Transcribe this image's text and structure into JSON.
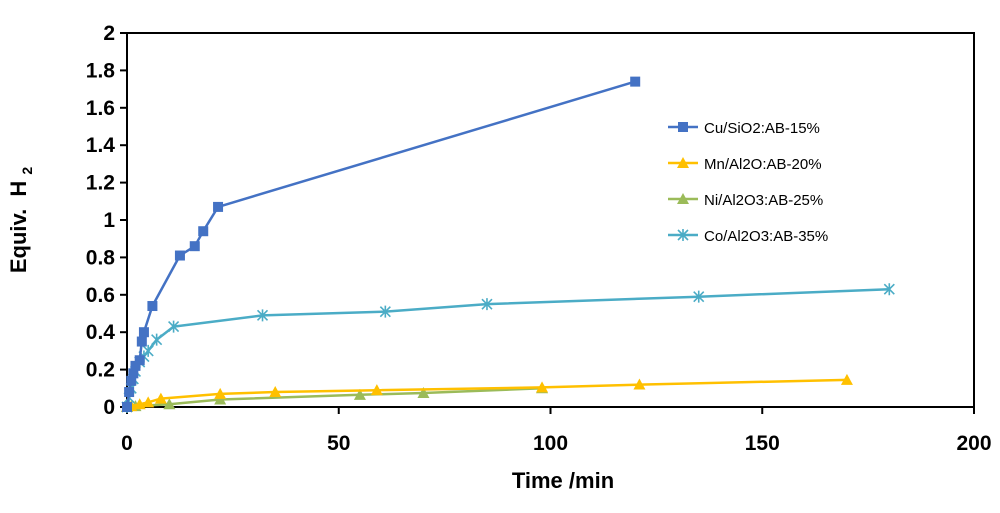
{
  "chart_data": {
    "type": "line",
    "title": "",
    "xlabel": "Time /min",
    "ylabel": "Equiv.",
    "ylabel_subscript_base": "H",
    "ylabel_subscript": "2",
    "xlim": [
      0,
      200
    ],
    "ylim": [
      0,
      2
    ],
    "xticks": [
      0,
      50,
      100,
      150,
      200
    ],
    "xtick_labels": [
      "0",
      "50",
      "100",
      "150",
      "200"
    ],
    "yticks": [
      0,
      0.2,
      0.4,
      0.6,
      0.8,
      1,
      1.2,
      1.4,
      1.6,
      1.8,
      2
    ],
    "ytick_labels": [
      "0",
      "0.2",
      "0.4",
      "0.6",
      "0.8",
      "1",
      "1.2",
      "1.4",
      "1.6",
      "1.8",
      "2"
    ],
    "grid": false,
    "legend_position": "right",
    "series": [
      {
        "name": "Cu/SiO2:AB-15%",
        "color": "#4472C4",
        "marker": "square",
        "x": [
          0,
          0.5,
          1,
          1.5,
          2,
          3,
          3.5,
          4,
          6,
          12.5,
          16,
          18,
          21.5,
          120
        ],
        "y": [
          0,
          0.08,
          0.14,
          0.18,
          0.22,
          0.25,
          0.35,
          0.4,
          0.54,
          0.81,
          0.86,
          0.94,
          1.07,
          1.74
        ]
      },
      {
        "name": "Mn/Al2O:AB-20%",
        "color": "#FFC000",
        "marker": "triangle",
        "x": [
          0,
          1,
          3,
          5,
          8,
          22,
          35,
          59,
          98,
          121,
          170
        ],
        "y": [
          0,
          0.005,
          0.015,
          0.025,
          0.045,
          0.07,
          0.08,
          0.09,
          0.105,
          0.12,
          0.145
        ]
      },
      {
        "name": "Ni/Al2O3:AB-25%",
        "color": "#9BBB59",
        "marker": "triangle",
        "x": [
          0,
          2,
          10,
          22,
          55,
          70,
          98
        ],
        "y": [
          0,
          0.005,
          0.015,
          0.04,
          0.065,
          0.075,
          0.1
        ]
      },
      {
        "name": "Co/Al2O3:AB-35%",
        "color": "#4BACC6",
        "marker": "star",
        "x": [
          0,
          0.5,
          1,
          1.5,
          2,
          3,
          4,
          5,
          7,
          11,
          32,
          61,
          85,
          135,
          180
        ],
        "y": [
          0,
          0.05,
          0.1,
          0.15,
          0.19,
          0.24,
          0.27,
          0.3,
          0.36,
          0.43,
          0.49,
          0.51,
          0.55,
          0.59,
          0.63
        ]
      }
    ]
  }
}
